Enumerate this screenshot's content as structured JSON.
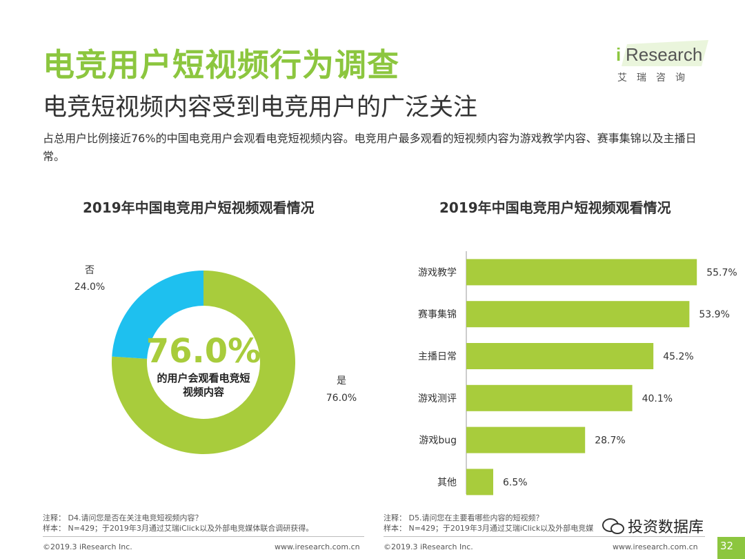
{
  "header": {
    "title": "电竞用户短视频行为调查",
    "subtitle": "电竞短视频内容受到电竞用户的广泛关注",
    "description": "占总用户比例接近76%的中国电竞用户会观看电竞短视频内容。电竞用户最多观看的短视频内容为游戏教学内容、赛事集锦以及主播日常。"
  },
  "logo": {
    "brand_i": "i",
    "brand_rest": "Research",
    "cn": "艾瑞咨询",
    "color": "#8cc63f"
  },
  "chart_data": [
    {
      "type": "pie",
      "title": "2019年中国电竞用户短视频观看情况",
      "center_value": "76.0%",
      "center_label": "的用户会观看电竞短视频内容",
      "slices": [
        {
          "label": "是",
          "value": 76.0,
          "display": "76.0%",
          "color": "#a8cc3c"
        },
        {
          "label": "否",
          "value": 24.0,
          "display": "24.0%",
          "color": "#1ec0ef"
        }
      ]
    },
    {
      "type": "bar",
      "orientation": "horizontal",
      "title": "2019年中国电竞用户短视频观看情况",
      "categories": [
        "游戏教学",
        "赛事集锦",
        "主播日常",
        "游戏测评",
        "游戏bug",
        "其他"
      ],
      "values": [
        55.7,
        53.9,
        45.2,
        40.1,
        28.7,
        6.5
      ],
      "value_labels": [
        "55.7%",
        "53.9%",
        "45.2%",
        "40.1%",
        "28.7%",
        "6.5%"
      ],
      "color": "#a8cc3c",
      "xlim": [
        0,
        60
      ]
    }
  ],
  "notes": {
    "left_q": "注释：  D4.请问您是否在关注电竞短视频内容？",
    "left_sample": "样本：  N=429；于2019年3月通过艾瑞iClick以及外部电竞媒体联合调研获得。",
    "right_q": "注释：  D5.请问您在主要看哪些内容的短视频？",
    "right_sample": "样本：  N=429；于2019年3月通过艾瑞iClick以及外部电竞媒"
  },
  "footer": {
    "left_copyright": "©2019.3 iResearch Inc.",
    "left_url": "www.iresearch.com.cn",
    "right_copyright": "©2019.3 iResearch Inc.",
    "right_url": "www.iresearch.com.cn",
    "page": "32",
    "watermark": "投资数据库"
  }
}
